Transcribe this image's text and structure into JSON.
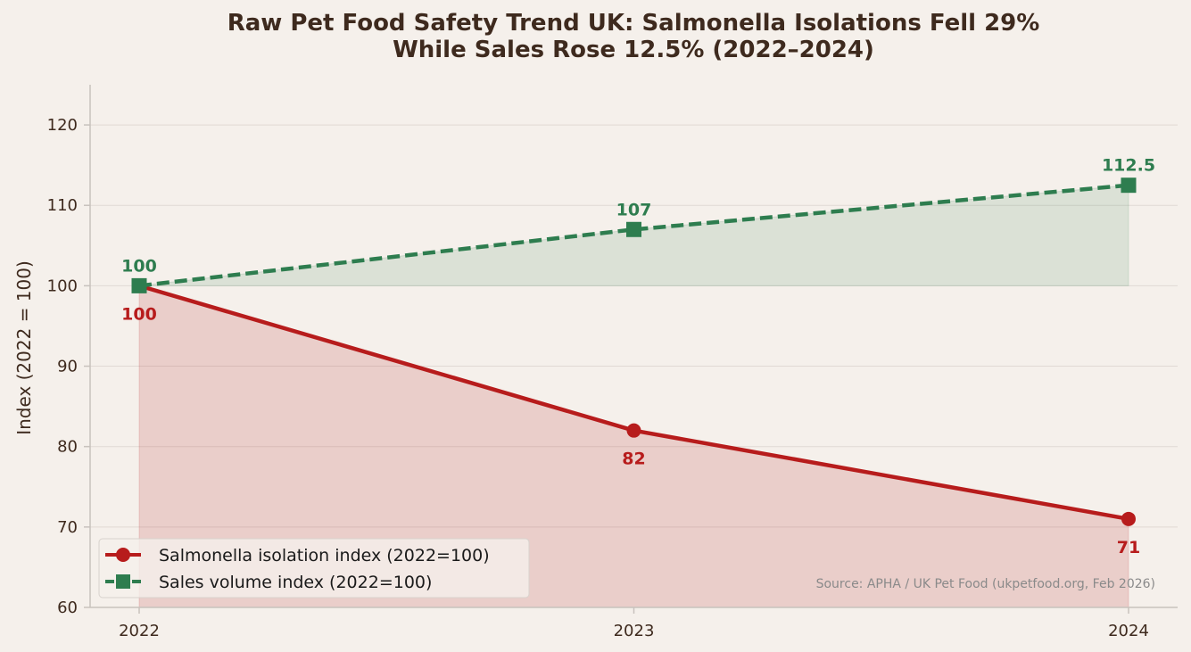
{
  "chart_data": {
    "type": "line",
    "title_line1": "Raw Pet Food Safety Trend UK: Salmonella Isolations Fell 29%",
    "title_line2": "While Sales Rose 12.5% (2022–2024)",
    "ylabel": "Index (2022 = 100)",
    "xlabel": "",
    "categories": [
      "2022",
      "2023",
      "2024"
    ],
    "ylim": [
      60,
      125
    ],
    "yticks": [
      60,
      70,
      80,
      90,
      100,
      110,
      120
    ],
    "grid": true,
    "legend_position": "bottom-left",
    "baseline": 100,
    "series": [
      {
        "name": "Salmonella isolation index (2022=100)",
        "values": [
          100,
          82,
          71
        ],
        "labels": [
          "100",
          "82",
          "71"
        ],
        "color": "#b71c1c",
        "marker": "circle",
        "line_style": "solid",
        "fill_to": "bottom",
        "label_position": "below"
      },
      {
        "name": "Sales volume index (2022=100)",
        "values": [
          100,
          107,
          112.5
        ],
        "labels": [
          "100",
          "107",
          "112.5"
        ],
        "color": "#2e7d4f",
        "marker": "square",
        "line_style": "dashed",
        "fill_to": "baseline",
        "label_position": "above"
      }
    ],
    "source_note": "Source: APHA / UK Pet Food (ukpetfood.org, Feb 2026)",
    "colors": {
      "background": "#f5f0eb",
      "title": "#3e2a1e",
      "axis_text": "#3e2a1e",
      "grid": "#e0d9d4",
      "spine": "#c8c2bd",
      "source": "#8a8a8a"
    }
  }
}
